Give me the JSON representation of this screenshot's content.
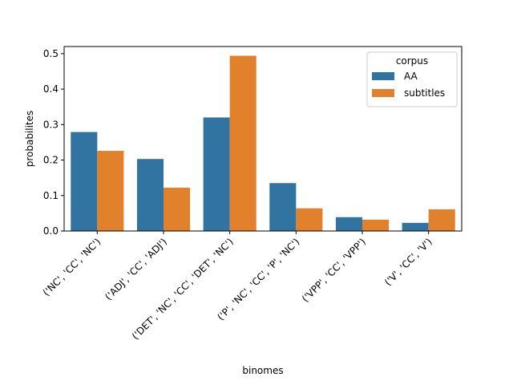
{
  "chart_data": {
    "type": "bar",
    "xlabel": "binomes",
    "ylabel": "probabilites",
    "ylim": [
      0,
      0.52
    ],
    "yticks": [
      "0.0",
      "0.1",
      "0.2",
      "0.3",
      "0.4",
      "0.5"
    ],
    "categories": [
      "('NC', 'CC', 'NC')",
      "('ADJ', 'CC', 'ADJ')",
      "('DET', 'NC', 'CC', 'DET', 'NC')",
      "('P', 'NC', 'CC', 'P', 'NC')",
      "('VPP', 'CC', 'VPP')",
      "('V', 'CC', 'V')"
    ],
    "series": [
      {
        "name": "AA",
        "color": "#3274a1",
        "values": [
          0.279,
          0.203,
          0.32,
          0.135,
          0.039,
          0.023
        ]
      },
      {
        "name": "subtitles",
        "color": "#e1812c",
        "values": [
          0.226,
          0.122,
          0.494,
          0.064,
          0.032,
          0.061
        ]
      }
    ],
    "legend": {
      "title": "corpus",
      "placement": "top-right"
    },
    "grid": false
  }
}
